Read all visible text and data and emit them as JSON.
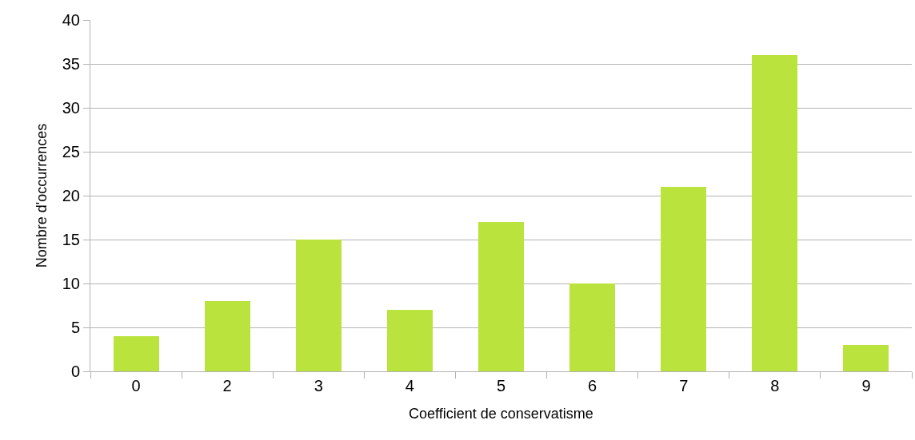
{
  "chart_data": {
    "type": "bar",
    "xlabel": "Coefficient de conservatisme",
    "ylabel": "Nombre d'occurrences",
    "categories": [
      "0",
      "2",
      "3",
      "4",
      "5",
      "6",
      "7",
      "8",
      "9"
    ],
    "values": [
      4,
      8,
      15,
      7,
      17,
      10,
      21,
      36,
      3
    ],
    "color": "#bbe33d",
    "ylim": [
      0,
      40
    ],
    "yticks": [
      0,
      5,
      10,
      15,
      20,
      25,
      30,
      35,
      40
    ],
    "grid": "y"
  }
}
